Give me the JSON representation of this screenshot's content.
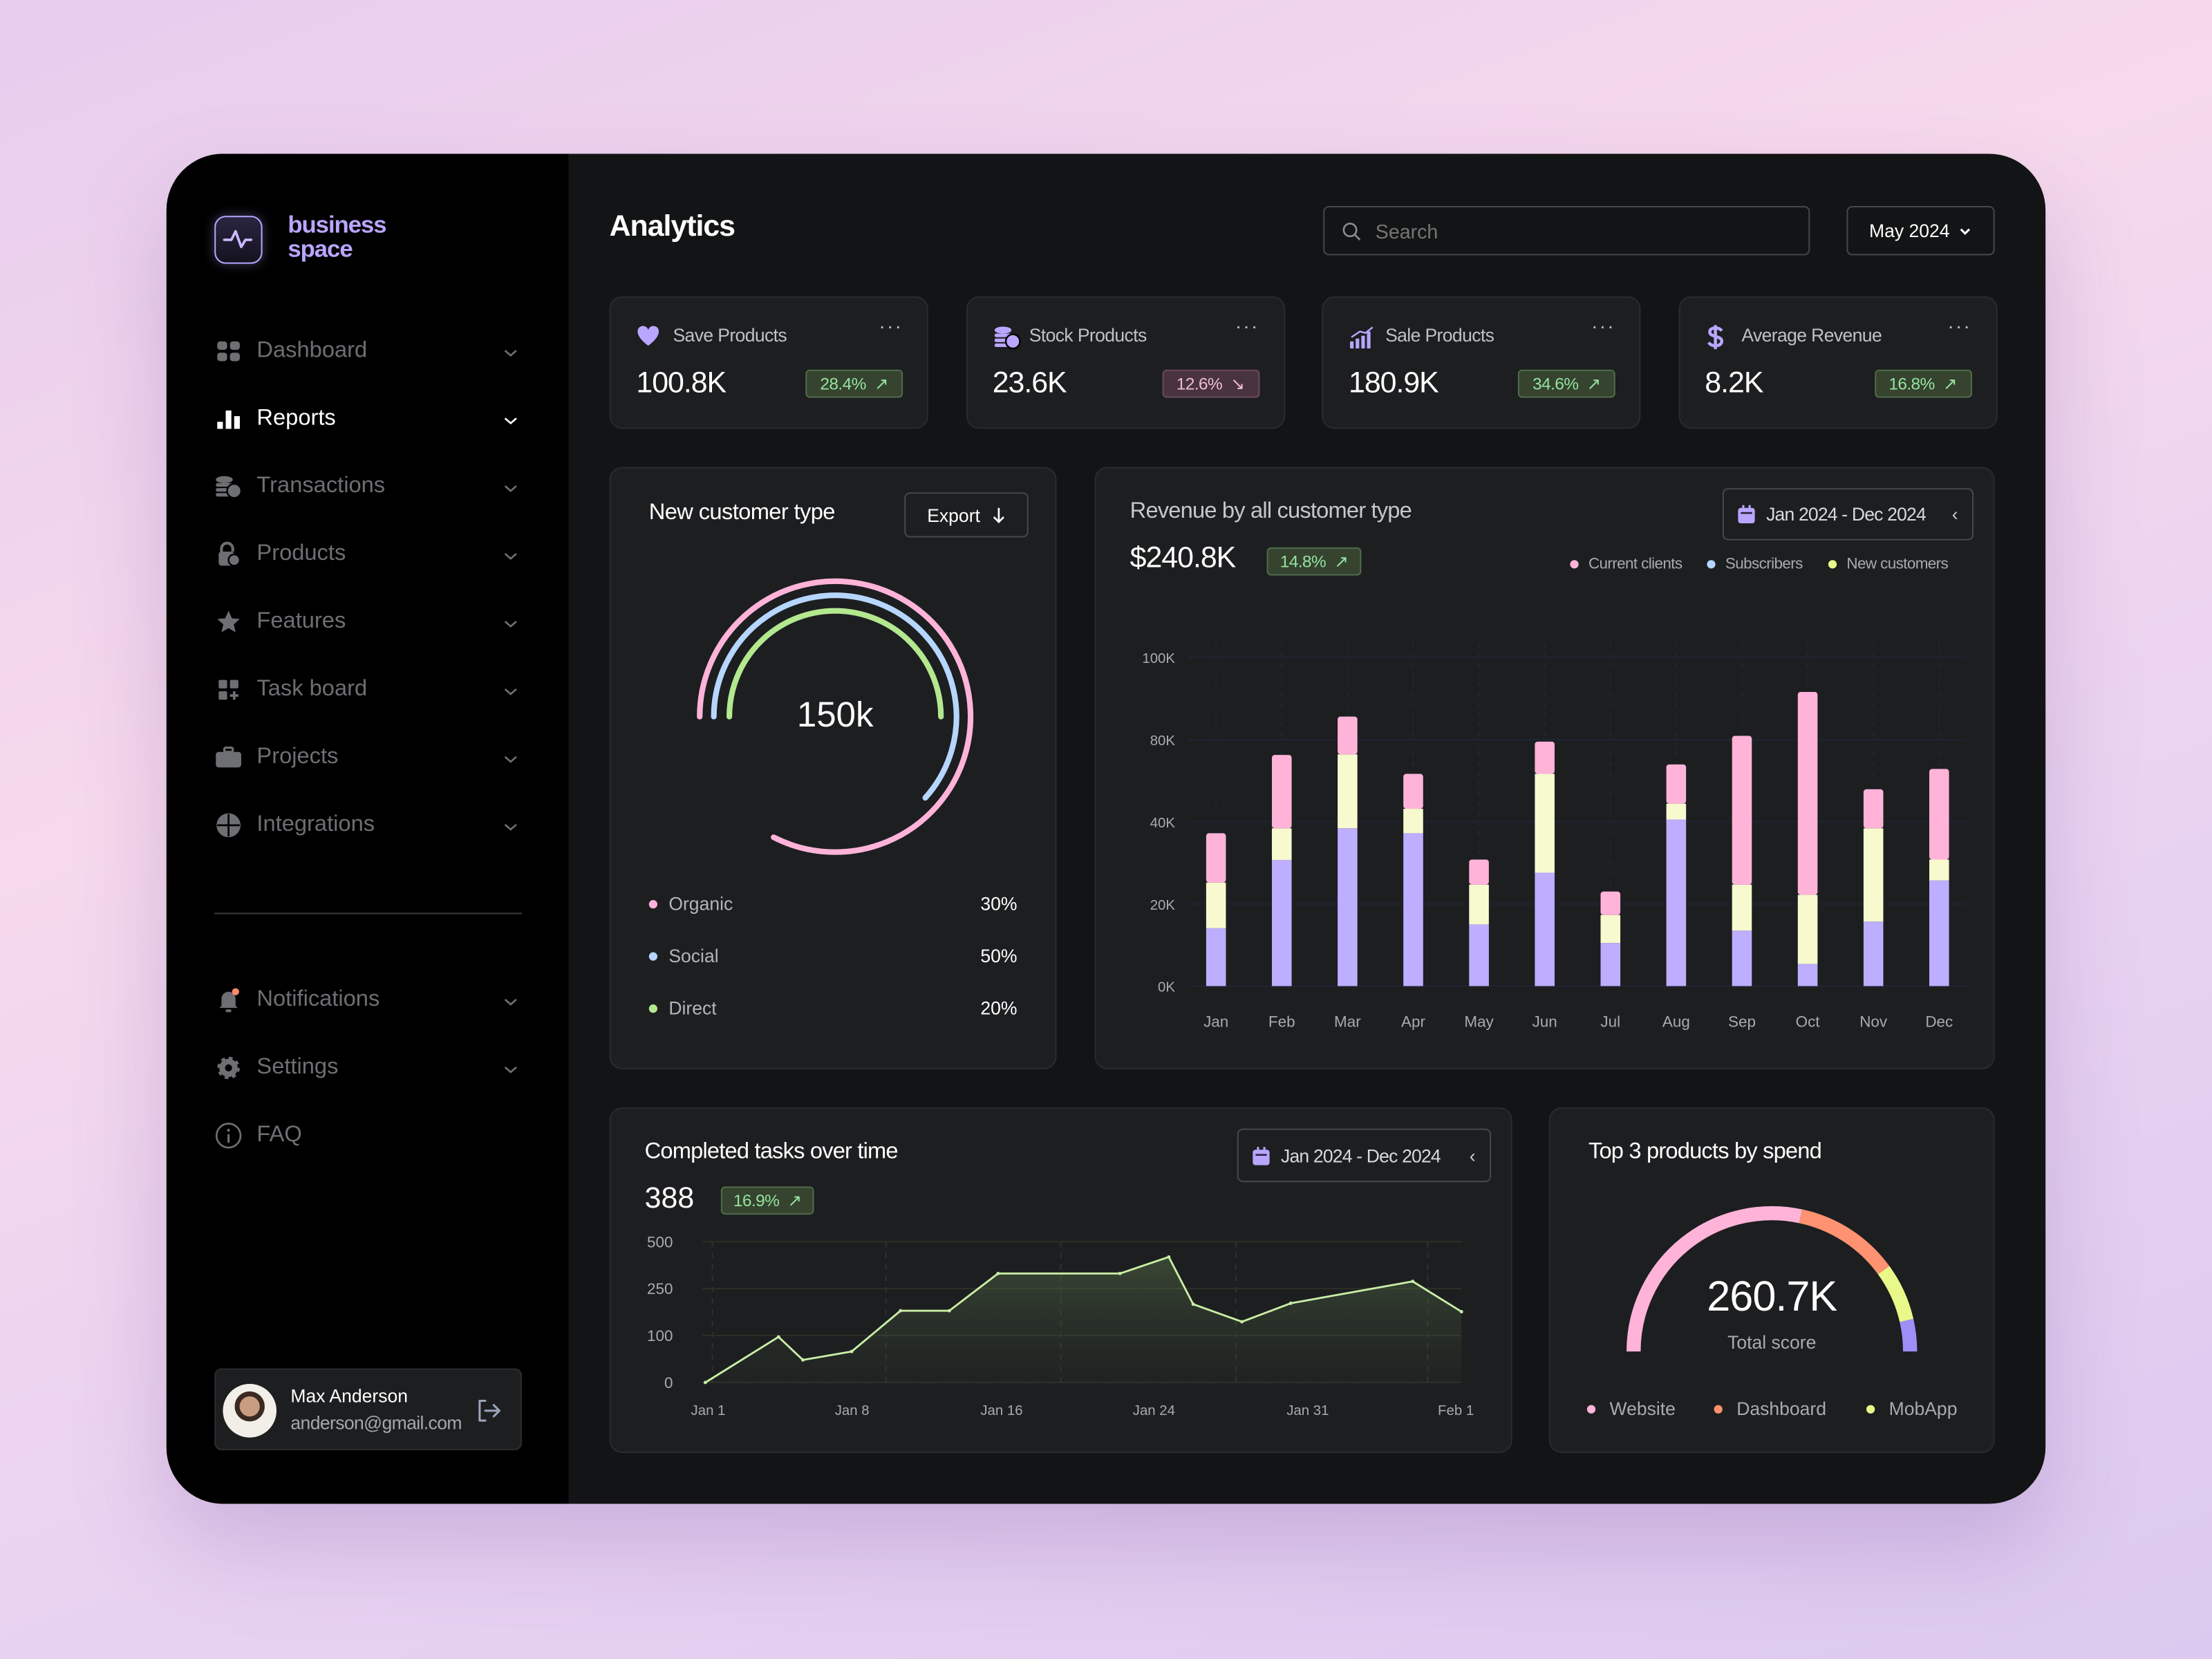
{
  "brand": {
    "line1": "business",
    "line2": "space",
    "color": "#b9a6ff"
  },
  "sidebar": {
    "items": [
      {
        "label": "Dashboard",
        "icon": "grid-icon",
        "active": false
      },
      {
        "label": "Reports",
        "icon": "bar-chart-icon",
        "active": true
      },
      {
        "label": "Transactions",
        "icon": "coins-icon",
        "active": false
      },
      {
        "label": "Products",
        "icon": "lock-clock-icon",
        "active": false
      },
      {
        "label": "Features",
        "icon": "star-icon",
        "active": false
      },
      {
        "label": "Task board",
        "icon": "grid-plus-icon",
        "active": false
      },
      {
        "label": "Projects",
        "icon": "briefcase-icon",
        "active": false
      },
      {
        "label": "Integrations",
        "icon": "puzzle-icon",
        "active": false
      }
    ],
    "bottom_items": [
      {
        "label": "Notifications",
        "icon": "bell-icon",
        "chevron": true
      },
      {
        "label": "Settings",
        "icon": "gear-icon",
        "chevron": true
      },
      {
        "label": "FAQ",
        "icon": "info-icon",
        "chevron": false
      }
    ],
    "user": {
      "name": "Max Anderson",
      "email": "anderson@gmail.com"
    }
  },
  "header": {
    "title": "Analytics",
    "search_placeholder": "Search",
    "date": "May 2024"
  },
  "kpis": [
    {
      "label": "Save Products",
      "value": "100.8K",
      "change": "28.4%",
      "trend": "up",
      "icon": "heart-icon"
    },
    {
      "label": "Stock Products",
      "value": "23.6K",
      "change": "12.6%",
      "trend": "down",
      "icon": "coins-icon"
    },
    {
      "label": "Sale Products",
      "value": "180.9K",
      "change": "34.6%",
      "trend": "up",
      "icon": "signal-bars-icon"
    },
    {
      "label": "Average Revenue",
      "value": "8.2K",
      "change": "16.8%",
      "trend": "up",
      "icon": "dollar-icon"
    }
  ],
  "new_customer": {
    "title": "New customer type",
    "export_label": "Export",
    "center_value": "150k",
    "segments": [
      {
        "label": "Organic",
        "value": "30%",
        "color": "#ffb3d9"
      },
      {
        "label": "Social",
        "value": "50%",
        "color": "#b6d6ff"
      },
      {
        "label": "Direct",
        "value": "20%",
        "color": "#b3e88f"
      }
    ]
  },
  "revenue": {
    "title": "Revenue by all customer type",
    "value": "$240.8K",
    "change": "14.8%",
    "date_range": "Jan 2024 - Dec 2024"
  },
  "tasks": {
    "title": "Completed tasks over time",
    "value": "388",
    "change": "16.9%",
    "date_range": "Jan 2024 - Dec 2024"
  },
  "top_products": {
    "title": "Top 3 products by spend",
    "value": "260.7K",
    "caption": "Total score",
    "legend": [
      {
        "label": "Website",
        "color": "#ffb3d9"
      },
      {
        "label": "Dashboard",
        "color": "#ff9270"
      },
      {
        "label": "MobApp",
        "color": "#e8f98a"
      }
    ]
  },
  "chart_data": [
    {
      "type": "bar",
      "stacked": true,
      "categories": [
        "Jan",
        "Feb",
        "Mar",
        "Apr",
        "May",
        "Jun",
        "Jul",
        "Aug",
        "Sep",
        "Oct",
        "Nov",
        "Dec"
      ],
      "y_ticks": [
        "0K",
        "20K",
        "40K",
        "80K",
        "100K"
      ],
      "y_tick_values": [
        0,
        20,
        40,
        80,
        100
      ],
      "legend_position": "top-right",
      "grid": true,
      "series": [
        {
          "name": "Subscribers",
          "color": "#bdaeff",
          "values": [
            14.1,
            30.7,
            38.4,
            37.2,
            15.0,
            27.6,
            10.5,
            41.1,
            13.5,
            5.4,
            15.7,
            25.7
          ]
        },
        {
          "name": "New customers",
          "color": "#f7f9cf",
          "values": [
            11.1,
            7.7,
            34.4,
            9.1,
            9.7,
            35.7,
            6.8,
            7.7,
            11.2,
            16.8,
            22.7,
            5.1
          ]
        },
        {
          "name": "Current clients",
          "color": "#ffb3d9",
          "values": [
            12.0,
            34.1,
            12.8,
            17.0,
            6.1,
            15.7,
            5.7,
            19.1,
            56.2,
            69.4,
            17.4,
            34.9
          ]
        }
      ],
      "legend_colors": {
        "Current clients": "#ffb3d9",
        "Subscribers": "#b6d6ff",
        "New customers": "#e8f98a"
      }
    },
    {
      "type": "area",
      "x_ticks": [
        "Jan 1",
        "Jan 8",
        "Jan 16",
        "Jan 24",
        "Jan 31",
        "Feb 1"
      ],
      "y_ticks": [
        "0",
        "100",
        "250",
        "500"
      ],
      "y_tick_values": [
        0,
        100,
        250,
        500
      ],
      "grid": true,
      "color": "#c9eea6",
      "points": [
        {
          "x": "Jan 1",
          "y": 0
        },
        {
          "x": "Jan 4",
          "y": 97
        },
        {
          "x": "Jan 5",
          "y": 48
        },
        {
          "x": "Jan 7",
          "y": 66
        },
        {
          "x": "Jan 9",
          "y": 179
        },
        {
          "x": "Jan 11",
          "y": 179
        },
        {
          "x": "Jan 13",
          "y": 330
        },
        {
          "x": "Jan 18",
          "y": 330
        },
        {
          "x": "Jan 20",
          "y": 418
        },
        {
          "x": "Jan 21",
          "y": 200
        },
        {
          "x": "Jan 23",
          "y": 144
        },
        {
          "x": "Jan 25",
          "y": 203
        },
        {
          "x": "Jan 30",
          "y": 288
        },
        {
          "x": "Feb 1",
          "y": 176
        }
      ]
    },
    {
      "type": "gauge",
      "segments": [
        {
          "name": "Website",
          "share": 0.567,
          "color": "#ffb3d9"
        },
        {
          "name": "Dashboard",
          "share": 0.233,
          "color": "#ff9270"
        },
        {
          "name": "MobApp",
          "share": 0.128,
          "color": "#e8f98a"
        },
        {
          "share": 0.072,
          "color": "#9d8ff7"
        }
      ]
    }
  ]
}
